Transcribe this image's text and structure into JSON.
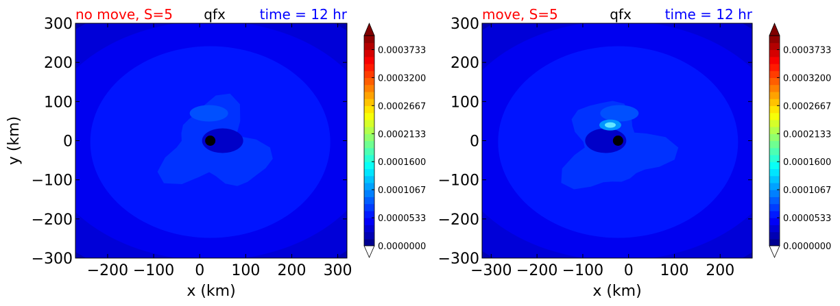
{
  "chart_data": [
    {
      "type": "heatmap",
      "title_left": "no move, S=5",
      "title_center": "qfx",
      "title_right": "time = 12 hr",
      "title_left_color": "#ff0000",
      "title_center_color": "#000000",
      "title_right_color": "#0000ff",
      "xlabel": "x (km)",
      "ylabel": "y (km)",
      "xlim": [
        -270,
        320
      ],
      "ylim": [
        -300,
        300
      ],
      "xticks": [
        -200,
        -100,
        0,
        100,
        200,
        300
      ],
      "xtick_labels": [
        "−200",
        "−100",
        "0",
        "100",
        "200",
        "300"
      ],
      "yticks": [
        300,
        200,
        100,
        0,
        -100,
        -200,
        -300
      ],
      "ytick_labels": [
        "300",
        "200",
        "100",
        "0",
        "−100",
        "−200",
        "−300"
      ],
      "center": {
        "x": 23,
        "y": 0
      },
      "bright_spot": null,
      "colorbar": {
        "min": 0.0,
        "max": 0.0004,
        "extend": "both",
        "colormap": "jet",
        "levels": 30,
        "tick_values": [
          0.0,
          5.33e-05,
          0.0001067,
          0.00016,
          0.0002133,
          0.0002667,
          0.00032,
          0.0003733
        ],
        "tick_labels": [
          "0.0000000",
          "0.0000533",
          "0.0001067",
          "0.0001600",
          "0.0002133",
          "0.0002667",
          "0.0003200",
          "0.0003733"
        ]
      }
    },
    {
      "type": "heatmap",
      "title_left": "move, S=5",
      "title_center": "qfx",
      "title_right": "time = 12 hr",
      "title_left_color": "#ff0000",
      "title_center_color": "#000000",
      "title_right_color": "#0000ff",
      "xlabel": "x (km)",
      "ylabel": "",
      "xlim": [
        -320,
        270
      ],
      "ylim": [
        -300,
        300
      ],
      "xticks": [
        -300,
        -200,
        -100,
        0,
        100,
        200
      ],
      "xtick_labels": [
        "−300",
        "−200",
        "−100",
        "0",
        "100",
        "200"
      ],
      "yticks": [
        300,
        200,
        100,
        0,
        -100,
        -200,
        -300
      ],
      "ytick_labels": [
        "300",
        "200",
        "100",
        "0",
        "−100",
        "−200",
        "−300"
      ],
      "center": {
        "x": -23,
        "y": 0
      },
      "bright_spot": {
        "x": -40,
        "y": 40
      },
      "colorbar": {
        "min": 0.0,
        "max": 0.0004,
        "extend": "both",
        "colormap": "jet",
        "levels": 30,
        "tick_values": [
          0.0,
          5.33e-05,
          0.0001067,
          0.00016,
          0.0002133,
          0.0002667,
          0.00032,
          0.0003733
        ],
        "tick_labels": [
          "0.0000000",
          "0.0000533",
          "0.0001067",
          "0.0001600",
          "0.0002133",
          "0.0002667",
          "0.0003200",
          "0.0003733"
        ]
      }
    }
  ]
}
